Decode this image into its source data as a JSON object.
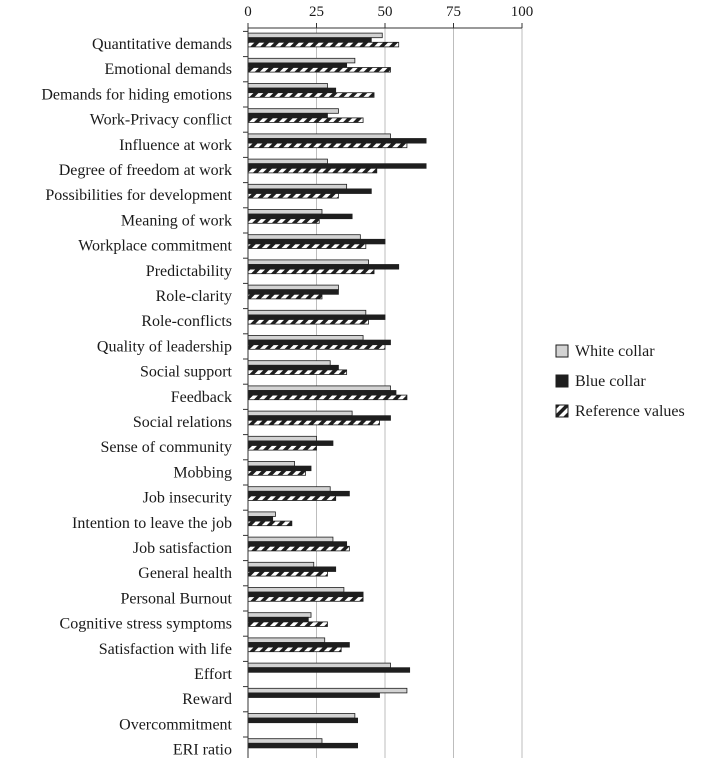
{
  "chart_data": {
    "type": "bar",
    "orientation": "horizontal",
    "title": "",
    "xlabel": "",
    "ylabel": "",
    "xlim": [
      0,
      100
    ],
    "x_ticks": [
      "0",
      "25",
      "50",
      "75",
      "100"
    ],
    "tick_values": [
      0,
      25,
      50,
      75,
      100
    ],
    "grid": true,
    "legend_position": "right",
    "categories": [
      "Quantitative demands",
      "Emotional demands",
      "Demands for hiding emotions",
      "Work-Privacy conflict",
      "Influence at work",
      "Degree of freedom at work",
      "Possibilities for development",
      "Meaning of work",
      "Workplace commitment",
      "Predictability",
      "Role-clarity",
      "Role-conflicts",
      "Quality of leadership",
      "Social support",
      "Feedback",
      "Social relations",
      "Sense of community",
      "Mobbing",
      "Job insecurity",
      "Intention to leave the job",
      "Job satisfaction",
      "General health",
      "Personal Burnout",
      "Cognitive stress symptoms",
      "Satisfaction with life",
      "Effort",
      "Reward",
      "Overcommitment",
      "ERI ratio"
    ],
    "series": [
      {
        "name": "White collar",
        "color": "#d3d3d3",
        "pattern": "solid-light",
        "values": [
          49,
          39,
          29,
          33,
          52,
          29,
          36,
          27,
          41,
          44,
          33,
          43,
          42,
          30,
          52,
          38,
          25,
          17,
          30,
          10,
          31,
          24,
          35,
          23,
          28,
          52,
          58,
          39,
          27
        ]
      },
      {
        "name": "Blue collar",
        "color": "#1e1e1e",
        "pattern": "solid-dark",
        "values": [
          45,
          36,
          32,
          29,
          65,
          65,
          45,
          38,
          50,
          55,
          33,
          50,
          52,
          33,
          54,
          52,
          31,
          23,
          37,
          9,
          36,
          32,
          42,
          22,
          37,
          59,
          48,
          40,
          40
        ]
      },
      {
        "name": "Reference values",
        "color": "#1e1e1e",
        "pattern": "diagonal-hatch",
        "values": [
          55,
          52,
          46,
          42,
          58,
          47,
          33,
          26,
          43,
          46,
          27,
          44,
          50,
          36,
          58,
          48,
          25,
          21,
          32,
          16,
          37,
          29,
          42,
          29,
          34,
          null,
          null,
          null,
          null
        ]
      }
    ]
  }
}
